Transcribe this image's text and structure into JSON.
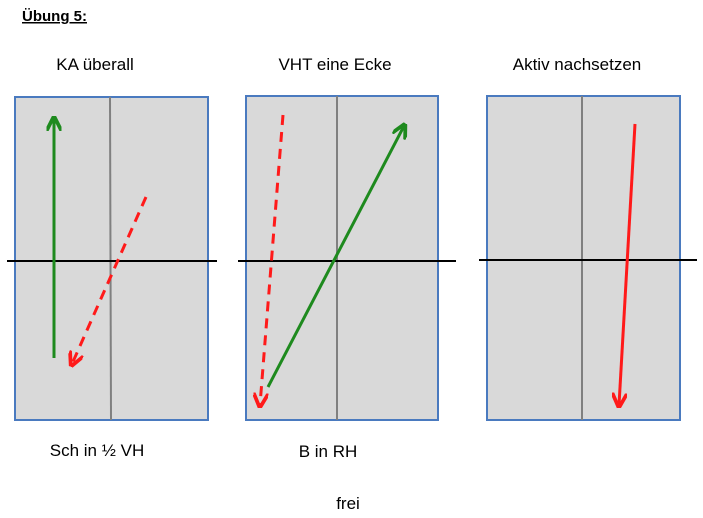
{
  "title": "Übung 5:",
  "panels": [
    {
      "label": "KA überall",
      "caption": "Sch in ½ VH"
    },
    {
      "label": "VHT eine Ecke",
      "caption": "B in RH"
    },
    {
      "label": "Aktiv nachsetzen"
    }
  ],
  "footer": "frei"
}
